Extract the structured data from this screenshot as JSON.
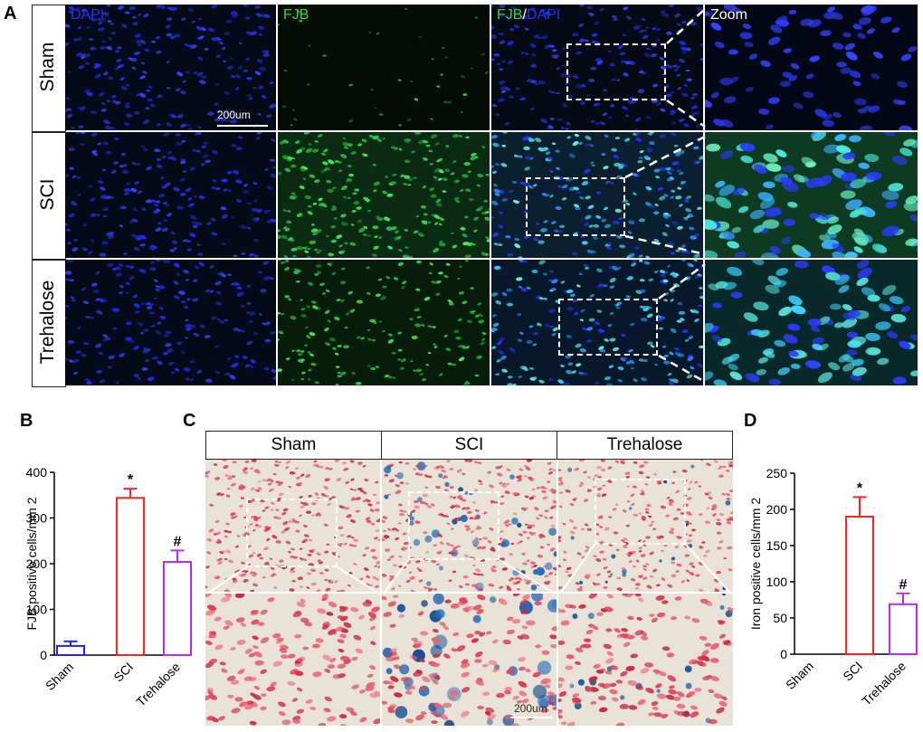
{
  "panels": {
    "A": {
      "letter": "A",
      "rows": [
        "Sham",
        "SCI",
        "Trehalose"
      ],
      "columns": {
        "dapi": "DAPI",
        "fjb": "FJB",
        "overlay_fjb": "FJB",
        "overlay_sep": "/",
        "overlay_dapi": "DAPI",
        "zoom": "Zoom"
      },
      "scale_bar": "200um",
      "colors": {
        "dapi": "#1a2cff",
        "fjb": "#2bdc4a"
      }
    },
    "B": {
      "letter": "B"
    },
    "C": {
      "letter": "C",
      "columns": [
        "Sham",
        "SCI",
        "Trehalose"
      ],
      "scale_bar": "200um"
    },
    "D": {
      "letter": "D"
    }
  },
  "chart_data": [
    {
      "panel": "B",
      "type": "bar",
      "categories": [
        "Sham",
        "SCI",
        "Trehalose"
      ],
      "values": [
        20,
        344,
        204
      ],
      "errors": [
        10,
        20,
        25
      ],
      "colors": [
        "#1f22ff",
        "#ff1f1f",
        "#b22cff"
      ],
      "annotations": [
        "",
        "*",
        "#"
      ],
      "ylabel": "FJB positive cells/mm 2",
      "ylim": [
        0,
        400
      ],
      "yticks": [
        0,
        100,
        200,
        300,
        400
      ],
      "title": "",
      "xlabel": ""
    },
    {
      "panel": "D",
      "type": "bar",
      "categories": [
        "Sham",
        "SCI",
        "Trehalose"
      ],
      "values": [
        0,
        190,
        69
      ],
      "errors": [
        0,
        27,
        15
      ],
      "colors": [
        "#1f22ff",
        "#ff1f1f",
        "#b22cff"
      ],
      "annotations": [
        "",
        "*",
        "#"
      ],
      "ylabel": "Iron positive cells/mm 2",
      "ylim": [
        0,
        250
      ],
      "yticks": [
        0,
        50,
        100,
        150,
        200,
        250
      ],
      "title": "",
      "xlabel": ""
    }
  ]
}
